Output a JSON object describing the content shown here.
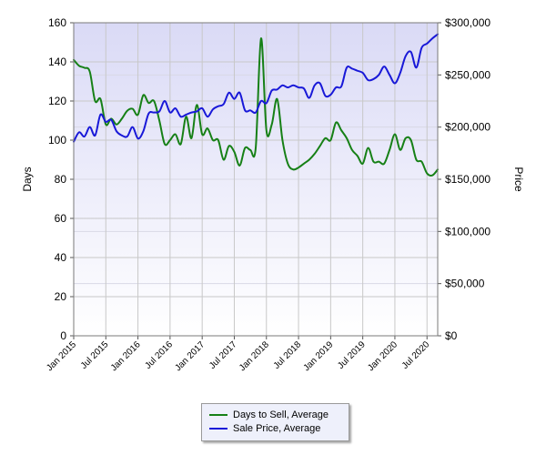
{
  "chart_data": {
    "type": "line",
    "x_type": "date",
    "x_ticks": [
      "Jan 2015",
      "Jul 2015",
      "Jan 2016",
      "Jul 2016",
      "Jan 2017",
      "Jul 2017",
      "Jan 2018",
      "Jul 2018",
      "Jan 2019",
      "Jul 2019",
      "Jan 2020",
      "Jul 2020"
    ],
    "xlim": [
      "2015-01-01",
      "2020-09-01"
    ],
    "left_axis": {
      "label": "Days",
      "ticks": [
        "0",
        "20",
        "40",
        "60",
        "80",
        "100",
        "120",
        "140",
        "160"
      ],
      "ylim": [
        0,
        160
      ]
    },
    "right_axis": {
      "label": "Price",
      "ticks": [
        "$0",
        "$50,000",
        "$100,000",
        "$150,000",
        "$200,000",
        "$250,000",
        "$300,000"
      ],
      "ylim": [
        0,
        300000
      ]
    },
    "grid": true,
    "legend_position": "bottom",
    "series": [
      {
        "name": "Days to Sell, Average",
        "axis": "left",
        "color": "#168016",
        "points": [
          [
            "2015-01-01",
            141
          ],
          [
            "2015-02-01",
            138
          ],
          [
            "2015-03-01",
            137
          ],
          [
            "2015-04-01",
            135
          ],
          [
            "2015-05-01",
            120
          ],
          [
            "2015-06-01",
            121
          ],
          [
            "2015-07-01",
            108
          ],
          [
            "2015-08-01",
            111
          ],
          [
            "2015-09-01",
            108
          ],
          [
            "2015-10-01",
            111
          ],
          [
            "2015-11-01",
            115
          ],
          [
            "2015-12-01",
            116
          ],
          [
            "2016-01-01",
            113
          ],
          [
            "2016-02-01",
            123
          ],
          [
            "2016-03-01",
            119
          ],
          [
            "2016-04-01",
            120
          ],
          [
            "2016-05-01",
            110
          ],
          [
            "2016-06-01",
            98
          ],
          [
            "2016-07-01",
            100
          ],
          [
            "2016-08-01",
            103
          ],
          [
            "2016-09-01",
            98
          ],
          [
            "2016-10-01",
            112
          ],
          [
            "2016-11-01",
            101
          ],
          [
            "2016-12-01",
            118
          ],
          [
            "2017-01-01",
            103
          ],
          [
            "2017-02-01",
            106
          ],
          [
            "2017-03-01",
            100
          ],
          [
            "2017-04-01",
            100
          ],
          [
            "2017-05-01",
            90
          ],
          [
            "2017-06-01",
            97
          ],
          [
            "2017-07-01",
            94
          ],
          [
            "2017-08-01",
            87
          ],
          [
            "2017-09-01",
            96
          ],
          [
            "2017-10-01",
            95
          ],
          [
            "2017-11-01",
            96
          ],
          [
            "2017-12-01",
            152
          ],
          [
            "2018-01-01",
            105
          ],
          [
            "2018-02-01",
            108
          ],
          [
            "2018-03-01",
            121
          ],
          [
            "2018-04-01",
            100
          ],
          [
            "2018-05-01",
            88
          ],
          [
            "2018-06-01",
            85
          ],
          [
            "2018-07-01",
            86
          ],
          [
            "2018-08-01",
            88
          ],
          [
            "2018-09-01",
            90
          ],
          [
            "2018-10-01",
            93
          ],
          [
            "2018-11-01",
            97
          ],
          [
            "2018-12-01",
            101
          ],
          [
            "2019-01-01",
            100
          ],
          [
            "2019-02-01",
            109
          ],
          [
            "2019-03-01",
            105
          ],
          [
            "2019-04-01",
            101
          ],
          [
            "2019-05-01",
            95
          ],
          [
            "2019-06-01",
            92
          ],
          [
            "2019-07-01",
            88
          ],
          [
            "2019-08-01",
            96
          ],
          [
            "2019-09-01",
            89
          ],
          [
            "2019-10-01",
            89
          ],
          [
            "2019-11-01",
            88
          ],
          [
            "2019-12-01",
            95
          ],
          [
            "2020-01-01",
            103
          ],
          [
            "2020-02-01",
            95
          ],
          [
            "2020-03-01",
            101
          ],
          [
            "2020-04-01",
            100
          ],
          [
            "2020-05-01",
            90
          ],
          [
            "2020-06-01",
            89
          ],
          [
            "2020-07-01",
            83
          ],
          [
            "2020-08-01",
            82
          ],
          [
            "2020-09-01",
            85
          ]
        ]
      },
      {
        "name": "Sale Price, Average",
        "axis": "right",
        "color": "#1818d8",
        "points": [
          [
            "2015-01-01",
            186000
          ],
          [
            "2015-02-01",
            195000
          ],
          [
            "2015-03-01",
            191000
          ],
          [
            "2015-04-01",
            200000
          ],
          [
            "2015-05-01",
            192000
          ],
          [
            "2015-06-01",
            212000
          ],
          [
            "2015-07-01",
            205000
          ],
          [
            "2015-08-01",
            207000
          ],
          [
            "2015-09-01",
            196000
          ],
          [
            "2015-10-01",
            192000
          ],
          [
            "2015-11-01",
            191000
          ],
          [
            "2015-12-01",
            200000
          ],
          [
            "2016-01-01",
            189000
          ],
          [
            "2016-02-01",
            196000
          ],
          [
            "2016-03-01",
            213000
          ],
          [
            "2016-04-01",
            214000
          ],
          [
            "2016-05-01",
            215000
          ],
          [
            "2016-06-01",
            225000
          ],
          [
            "2016-07-01",
            214000
          ],
          [
            "2016-08-01",
            218000
          ],
          [
            "2016-09-01",
            210000
          ],
          [
            "2016-10-01",
            212000
          ],
          [
            "2016-11-01",
            214000
          ],
          [
            "2016-12-01",
            215000
          ],
          [
            "2017-01-01",
            218000
          ],
          [
            "2017-02-01",
            210000
          ],
          [
            "2017-03-01",
            217000
          ],
          [
            "2017-04-01",
            220000
          ],
          [
            "2017-05-01",
            222000
          ],
          [
            "2017-06-01",
            233000
          ],
          [
            "2017-07-01",
            227000
          ],
          [
            "2017-08-01",
            233000
          ],
          [
            "2017-09-01",
            216000
          ],
          [
            "2017-10-01",
            216000
          ],
          [
            "2017-11-01",
            214000
          ],
          [
            "2017-12-01",
            225000
          ],
          [
            "2018-01-01",
            223000
          ],
          [
            "2018-02-01",
            235000
          ],
          [
            "2018-03-01",
            236000
          ],
          [
            "2018-04-01",
            240000
          ],
          [
            "2018-05-01",
            238000
          ],
          [
            "2018-06-01",
            240000
          ],
          [
            "2018-07-01",
            238000
          ],
          [
            "2018-08-01",
            237000
          ],
          [
            "2018-09-01",
            228000
          ],
          [
            "2018-10-01",
            240000
          ],
          [
            "2018-11-01",
            242000
          ],
          [
            "2018-12-01",
            230000
          ],
          [
            "2019-01-01",
            231000
          ],
          [
            "2019-02-01",
            238000
          ],
          [
            "2019-03-01",
            239000
          ],
          [
            "2019-04-01",
            257000
          ],
          [
            "2019-05-01",
            256000
          ],
          [
            "2019-06-01",
            254000
          ],
          [
            "2019-07-01",
            252000
          ],
          [
            "2019-08-01",
            245000
          ],
          [
            "2019-09-01",
            246000
          ],
          [
            "2019-10-01",
            250000
          ],
          [
            "2019-11-01",
            258000
          ],
          [
            "2019-12-01",
            250000
          ],
          [
            "2020-01-01",
            242000
          ],
          [
            "2020-02-01",
            252000
          ],
          [
            "2020-03-01",
            268000
          ],
          [
            "2020-04-01",
            272000
          ],
          [
            "2020-05-01",
            257000
          ],
          [
            "2020-06-01",
            276000
          ],
          [
            "2020-07-01",
            280000
          ],
          [
            "2020-08-01",
            285000
          ],
          [
            "2020-09-01",
            289000
          ]
        ]
      }
    ]
  }
}
